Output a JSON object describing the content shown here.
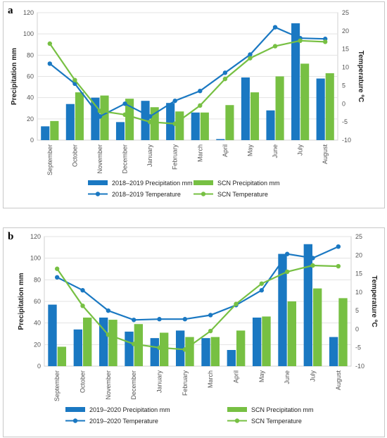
{
  "chart_data": [
    {
      "panel_label": "a",
      "type": "bar+line",
      "categories": [
        "September",
        "October",
        "November",
        "December",
        "January",
        "February",
        "March",
        "April",
        "May",
        "June",
        "July",
        "August"
      ],
      "ylabel": "Precipitation mm",
      "y2label": "Temperature ºC",
      "ylim": [
        0,
        120
      ],
      "y2lim": [
        -10,
        25
      ],
      "yticks": [
        0,
        20,
        40,
        60,
        80,
        100,
        120
      ],
      "y2ticks": [
        -10,
        -5,
        0,
        5,
        10,
        15,
        20,
        25
      ],
      "grid": true,
      "legend_position": "bottom",
      "bar_series": [
        {
          "name": "2018–2019 Precipitation mm",
          "color": "#1a78c2",
          "values": [
            13,
            34,
            40,
            17,
            37,
            35,
            26,
            1,
            59,
            28,
            110,
            58
          ]
        },
        {
          "name": "SCN Precipitation mm",
          "color": "#77c043",
          "values": [
            18,
            45,
            42,
            39,
            31,
            27,
            26,
            33,
            45,
            60,
            72,
            63
          ]
        }
      ],
      "line_series": [
        {
          "name": "2018–2019 Temperature",
          "color": "#1a78c2",
          "values": [
            11,
            5.5,
            -3.5,
            0,
            -3.5,
            0.8,
            3.5,
            8.5,
            13.5,
            21,
            18,
            17.8
          ]
        },
        {
          "name": "SCN Temperature",
          "color": "#77c043",
          "values": [
            16.5,
            6.5,
            -2,
            -3,
            -5,
            -5.5,
            -0.5,
            6.8,
            12.5,
            15.8,
            17.3,
            17
          ]
        }
      ]
    },
    {
      "panel_label": "b",
      "type": "bar+line",
      "categories": [
        "September",
        "October",
        "November",
        "December",
        "January",
        "February",
        "March",
        "April",
        "May",
        "June",
        "July",
        "August"
      ],
      "ylabel": "Precipitation mm",
      "y2label": "Temperature ºC",
      "ylim": [
        0,
        120
      ],
      "y2lim": [
        -10,
        25
      ],
      "yticks": [
        0,
        20,
        40,
        60,
        80,
        100,
        120
      ],
      "y2ticks": [
        -10,
        -5,
        0,
        5,
        10,
        15,
        20,
        25
      ],
      "grid": true,
      "legend_position": "bottom",
      "bar_series": [
        {
          "name": "2019–2020 Precipitation mm",
          "color": "#1a78c2",
          "values": [
            57,
            34,
            45,
            32,
            26,
            33,
            26,
            15,
            45,
            104,
            113,
            27
          ]
        },
        {
          "name": "SCN Precipitation mm",
          "color": "#77c043",
          "values": [
            18,
            45,
            43,
            39,
            31,
            27,
            27,
            33,
            46,
            60,
            72,
            63
          ]
        }
      ],
      "line_series": [
        {
          "name": "2019–2020 Temperature",
          "color": "#1a78c2",
          "values": [
            14,
            10.5,
            5,
            2.5,
            2.7,
            2.7,
            3.8,
            6.5,
            10.5,
            20.3,
            19.2,
            22.3
          ]
        },
        {
          "name": "SCN Temperature",
          "color": "#77c043",
          "values": [
            16.3,
            6.3,
            -1.5,
            -4,
            -5,
            -5.5,
            -0.5,
            6.8,
            12.3,
            15.5,
            17.2,
            17
          ]
        }
      ]
    }
  ]
}
